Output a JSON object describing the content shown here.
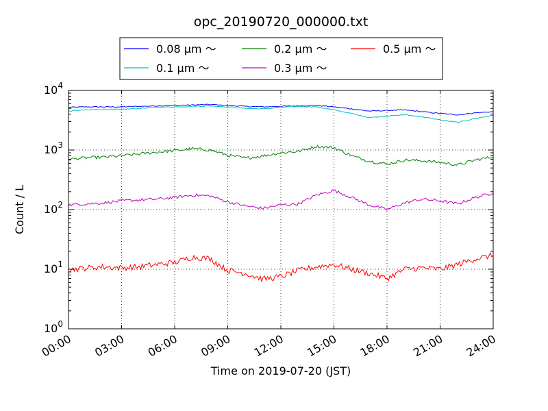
{
  "chart_data": {
    "type": "line",
    "title": "opc_20190720_000000.txt",
    "xlabel": "Time on 2019-07-20 (JST)",
    "ylabel": "Count / L",
    "yscale": "log",
    "xlim": [
      "2019-07-20 00:00",
      "2019-07-21 00:00"
    ],
    "ylim": [
      1,
      10000
    ],
    "x_ticks": [
      "00:00",
      "03:00",
      "06:00",
      "09:00",
      "12:00",
      "15:00",
      "18:00",
      "21:00",
      "24:00"
    ],
    "y_ticks": [
      {
        "base": "10",
        "exp": "0"
      },
      {
        "base": "10",
        "exp": "1"
      },
      {
        "base": "10",
        "exp": "2"
      },
      {
        "base": "10",
        "exp": "3"
      },
      {
        "base": "10",
        "exp": "4"
      }
    ],
    "grid": true,
    "grid_style": "dotted",
    "legend_position": "top-center (above plot)",
    "x": [
      "00:00",
      "01:00",
      "02:00",
      "03:00",
      "04:00",
      "05:00",
      "06:00",
      "07:00",
      "08:00",
      "09:00",
      "10:00",
      "11:00",
      "12:00",
      "13:00",
      "14:00",
      "15:00",
      "16:00",
      "17:00",
      "18:00",
      "19:00",
      "20:00",
      "21:00",
      "22:00",
      "23:00",
      "24:00"
    ],
    "series": [
      {
        "name": "0.08 μm ～",
        "color": "#0000ff",
        "values": [
          5200,
          5300,
          5300,
          5300,
          5400,
          5500,
          5600,
          5700,
          5800,
          5600,
          5400,
          5300,
          5400,
          5500,
          5600,
          5300,
          4900,
          4500,
          4600,
          4700,
          4400,
          4100,
          3900,
          4200,
          4400
        ]
      },
      {
        "name": "0.1 μm ～",
        "color": "#00bfbf",
        "values": [
          4500,
          4700,
          4800,
          4800,
          5000,
          5200,
          5300,
          5400,
          5500,
          5300,
          5000,
          4900,
          5200,
          5400,
          5300,
          4700,
          4100,
          3500,
          3700,
          3900,
          3600,
          3200,
          2900,
          3400,
          3800
        ]
      },
      {
        "name": "0.2 μm ～",
        "color": "#008000",
        "values": [
          700,
          740,
          760,
          800,
          860,
          920,
          980,
          1050,
          1000,
          820,
          730,
          800,
          900,
          950,
          1150,
          1100,
          800,
          650,
          580,
          680,
          660,
          620,
          560,
          680,
          770
        ]
      },
      {
        "name": "0.3 μm ～",
        "color": "#bf00bf",
        "values": [
          120,
          125,
          130,
          140,
          145,
          150,
          160,
          175,
          170,
          135,
          115,
          105,
          120,
          125,
          175,
          210,
          160,
          120,
          100,
          130,
          150,
          140,
          125,
          160,
          190
        ]
      },
      {
        "name": "0.5 μm ～",
        "color": "#ff0000",
        "values": [
          9.8,
          10.5,
          11,
          10.5,
          11,
          12,
          13,
          16,
          15,
          9.5,
          8.5,
          6.8,
          7.5,
          9.5,
          11,
          12,
          10,
          8.5,
          7,
          10,
          10.5,
          10,
          12,
          15,
          17
        ]
      }
    ]
  }
}
